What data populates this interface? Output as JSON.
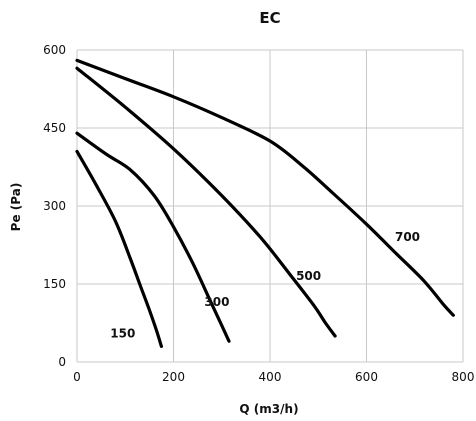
{
  "chart_data": {
    "type": "line",
    "title": "EC",
    "xlabel": "Q (m3/h)",
    "ylabel": "Pe (Pa)",
    "xlim": [
      0,
      800
    ],
    "ylim": [
      0,
      600
    ],
    "xticks": [
      0,
      200,
      400,
      600,
      800
    ],
    "yticks": [
      0,
      150,
      300,
      450,
      600
    ],
    "grid": true,
    "line_color": "#000000",
    "grid_color": "#c8c8c8",
    "series": [
      {
        "name": "150",
        "label": "150",
        "points": [
          [
            0,
            405
          ],
          [
            40,
            340
          ],
          [
            80,
            270
          ],
          [
            110,
            200
          ],
          [
            130,
            150
          ],
          [
            150,
            100
          ],
          [
            165,
            60
          ],
          [
            175,
            30
          ]
        ]
      },
      {
        "name": "300",
        "label": "300",
        "points": [
          [
            0,
            440
          ],
          [
            60,
            400
          ],
          [
            110,
            370
          ],
          [
            160,
            320
          ],
          [
            200,
            260
          ],
          [
            240,
            190
          ],
          [
            275,
            120
          ],
          [
            300,
            70
          ],
          [
            315,
            40
          ]
        ]
      },
      {
        "name": "500",
        "label": "500",
        "points": [
          [
            0,
            565
          ],
          [
            100,
            490
          ],
          [
            200,
            410
          ],
          [
            300,
            320
          ],
          [
            380,
            240
          ],
          [
            440,
            170
          ],
          [
            490,
            110
          ],
          [
            515,
            75
          ],
          [
            535,
            50
          ]
        ]
      },
      {
        "name": "700",
        "label": "700",
        "points": [
          [
            0,
            580
          ],
          [
            100,
            545
          ],
          [
            200,
            510
          ],
          [
            300,
            470
          ],
          [
            400,
            425
          ],
          [
            470,
            375
          ],
          [
            530,
            325
          ],
          [
            600,
            265
          ],
          [
            660,
            210
          ],
          [
            720,
            155
          ],
          [
            760,
            110
          ],
          [
            780,
            90
          ]
        ]
      }
    ],
    "annotations": [
      {
        "text": "150",
        "x": 95,
        "y": 55
      },
      {
        "text": "300",
        "x": 290,
        "y": 115
      },
      {
        "text": "500",
        "x": 480,
        "y": 165
      },
      {
        "text": "700",
        "x": 685,
        "y": 240
      }
    ]
  }
}
